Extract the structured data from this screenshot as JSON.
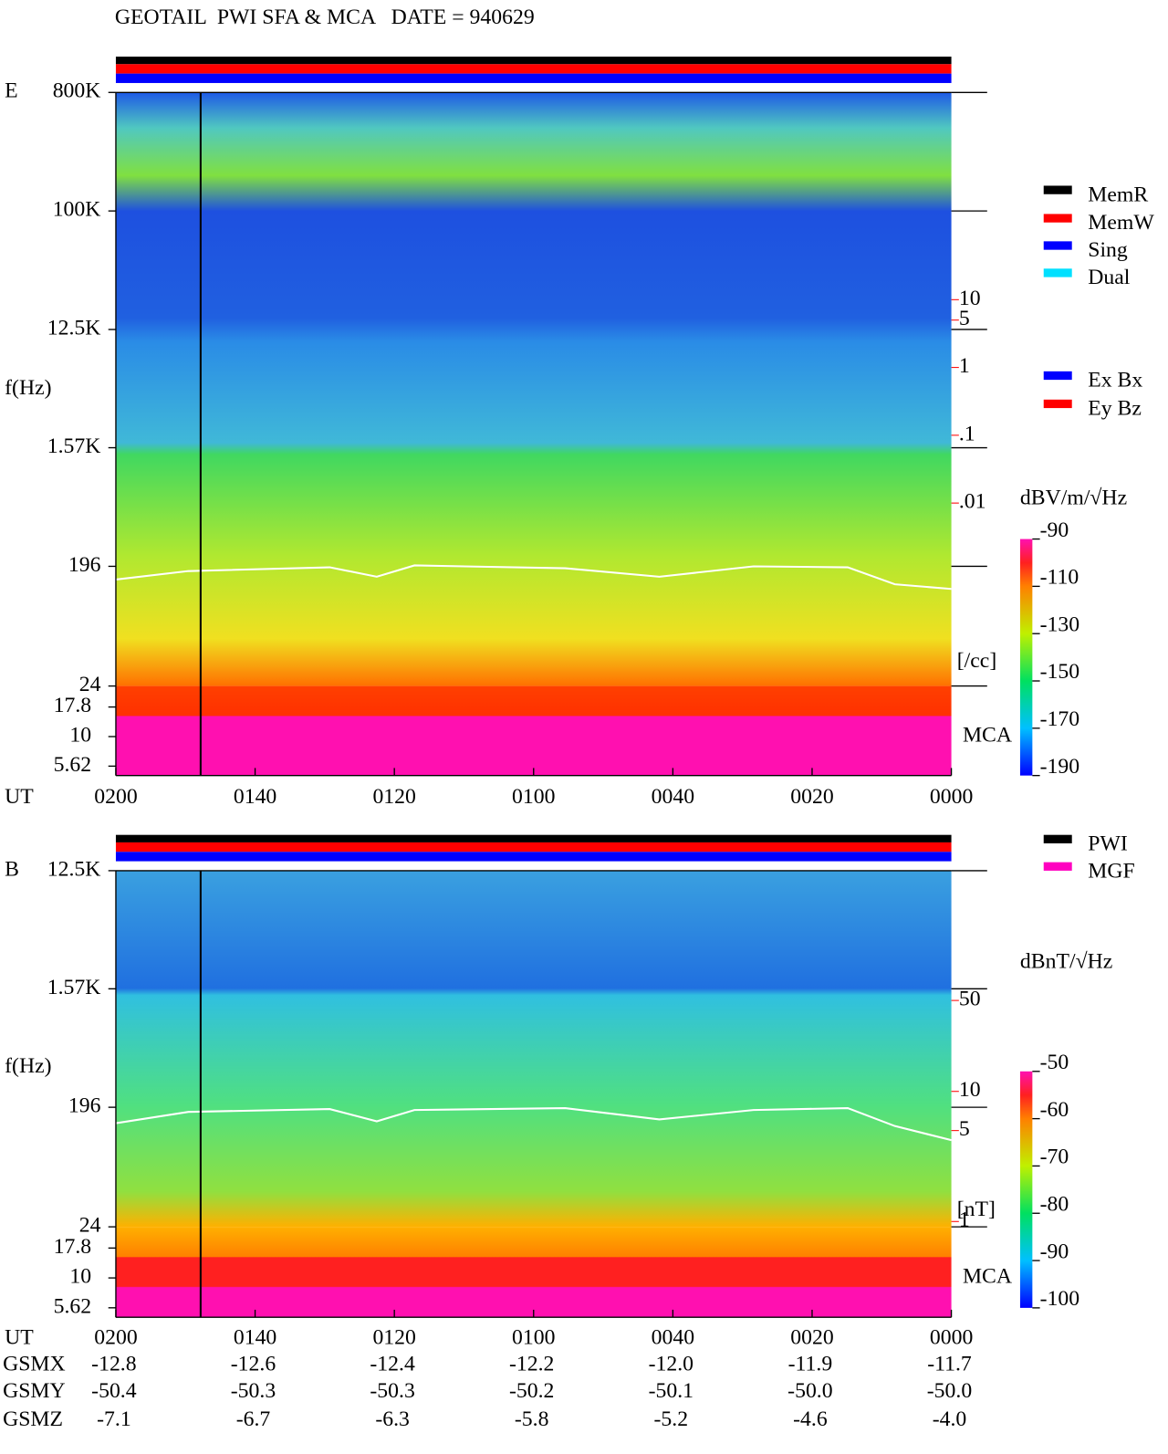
{
  "title": "GEOTAIL  PWI SFA & MCA   DATE = 940629",
  "chart_data": [
    {
      "type": "spectrogram",
      "panel_label": "E",
      "y_label": "f(Hz)",
      "x_label": "UT",
      "log_y": true,
      "ylim": [
        24,
        800000
      ],
      "yticks": [
        {
          "value": 800000,
          "label": "800K"
        },
        {
          "value": 100000,
          "label": "100K"
        },
        {
          "value": 12500,
          "label": "12.5K"
        },
        {
          "value": 1570,
          "label": "1.57K"
        },
        196,
        24
      ],
      "mca_label": "MCA",
      "mca_ylim": [
        4.68,
        26.8
      ],
      "mca_ticks": [
        17.8,
        10,
        5.62
      ],
      "xlim": [
        0,
        120
      ],
      "xticks": [
        {
          "value": 0,
          "label": "0000"
        },
        {
          "value": 20,
          "label": "0020"
        },
        {
          "value": 40,
          "label": "0040"
        },
        {
          "value": 60,
          "label": "0100"
        },
        {
          "value": 80,
          "label": "0120"
        },
        {
          "value": 100,
          "label": "0140"
        },
        {
          "value": 120,
          "label": "0200"
        }
      ],
      "y2_label": "[/cc]",
      "y2_log": true,
      "y2lim": [
        2e-05,
        11400
      ],
      "y2ticks": [
        10,
        5,
        1,
        {
          "value": 0.1,
          "label": ".1"
        },
        {
          "value": 0.01,
          "label": ".01"
        }
      ],
      "colorbar": {
        "label": "dBV/m/√Hz",
        "lim": [
          -190,
          -90
        ],
        "ticks": [
          -90,
          -110,
          -130,
          -150,
          -170,
          -190
        ]
      },
      "status_legend": [
        {
          "name": "MemR",
          "color": "#000000"
        },
        {
          "name": "MemW",
          "color": "#ff0000"
        },
        {
          "name": "Sing",
          "color": "#0000ff"
        },
        {
          "name": "Dual",
          "color": "#00e0ff"
        }
      ],
      "component_legend": [
        {
          "name": "Ex Bx",
          "color": "#0000ff"
        },
        {
          "name": "Ey Bz",
          "color": "#ff0000"
        }
      ]
    },
    {
      "type": "spectrogram",
      "panel_label": "B",
      "y_label": "f(Hz)",
      "x_label": "UT",
      "log_y": true,
      "ylim": [
        24,
        12500
      ],
      "yticks": [
        {
          "value": 12500,
          "label": "12.5K"
        },
        {
          "value": 1570,
          "label": "1.57K"
        },
        196,
        24
      ],
      "mca_label": "MCA",
      "mca_ylim": [
        4.68,
        26.8
      ],
      "mca_ticks": [
        17.8,
        10,
        5.62
      ],
      "xlim": [
        0,
        120
      ],
      "xticks": [
        {
          "value": 0,
          "label": "0000"
        },
        {
          "value": 20,
          "label": "0020"
        },
        {
          "value": 40,
          "label": "0040"
        },
        {
          "value": 60,
          "label": "0100"
        },
        {
          "value": 80,
          "label": "0120"
        },
        {
          "value": 100,
          "label": "0140"
        },
        {
          "value": 120,
          "label": "0200"
        }
      ],
      "y2_label": "[nT]",
      "y2_log": true,
      "y2lim": [
        0.91,
        497
      ],
      "y2ticks": [
        50,
        10,
        5,
        1
      ],
      "colorbar": {
        "label": "dBnT/√Hz",
        "lim": [
          -100,
          -50
        ],
        "ticks": [
          -50,
          -60,
          -70,
          -80,
          -90,
          -100
        ]
      },
      "status_legend": [
        {
          "name": "PWI",
          "color": "#000000"
        },
        {
          "name": "MGF",
          "color": "#ff00c0"
        }
      ]
    }
  ],
  "orbit": {
    "rows": [
      {
        "name": "GSMX",
        "values": [
          "-12.8",
          "-12.6",
          "-12.4",
          "-12.2",
          "-12.0",
          "-11.9",
          "-11.7"
        ]
      },
      {
        "name": "GSMY",
        "values": [
          "-50.4",
          "-50.3",
          "-50.3",
          "-50.2",
          "-50.1",
          "-50.0",
          "-50.0"
        ]
      },
      {
        "name": "GSMZ",
        "values": [
          "-7.1",
          "-6.7",
          "-6.3",
          "-5.8",
          "-5.2",
          "-4.6",
          "-4.0"
        ]
      }
    ]
  }
}
